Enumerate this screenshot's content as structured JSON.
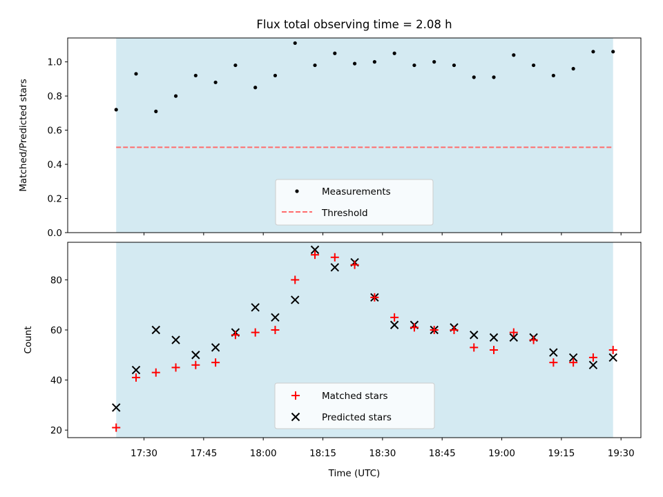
{
  "chart_data": [
    {
      "type": "scatter",
      "title": "Flux total observing time = 2.08 h",
      "xlabel": "",
      "ylabel": "Matched/Predicted stars",
      "ylim": [
        0,
        1.14
      ],
      "yticks": [
        0.0,
        0.2,
        0.4,
        0.6,
        0.8,
        1.0
      ],
      "yticklabels": [
        "0.0",
        "0.2",
        "0.4",
        "0.6",
        "0.8",
        "1.0"
      ],
      "shaded_region": {
        "from": "17:23",
        "to": "19:28",
        "color": "#add8e6"
      },
      "series": [
        {
          "name": "Measurements",
          "marker": "dot",
          "color": "#000000",
          "points": [
            [
              "17:23",
              0.72
            ],
            [
              "17:28",
              0.93
            ],
            [
              "17:33",
              0.71
            ],
            [
              "17:38",
              0.8
            ],
            [
              "17:43",
              0.92
            ],
            [
              "17:48",
              0.88
            ],
            [
              "17:53",
              0.98
            ],
            [
              "17:58",
              0.85
            ],
            [
              "18:03",
              0.92
            ],
            [
              "18:08",
              1.11
            ],
            [
              "18:13",
              0.98
            ],
            [
              "18:18",
              1.05
            ],
            [
              "18:23",
              0.99
            ],
            [
              "18:28",
              1.0
            ],
            [
              "18:33",
              1.05
            ],
            [
              "18:38",
              0.98
            ],
            [
              "18:43",
              1.0
            ],
            [
              "18:48",
              0.98
            ],
            [
              "18:53",
              0.91
            ],
            [
              "18:58",
              0.91
            ],
            [
              "19:03",
              1.04
            ],
            [
              "19:08",
              0.98
            ],
            [
              "19:13",
              0.92
            ],
            [
              "19:18",
              0.96
            ],
            [
              "19:23",
              1.06
            ],
            [
              "19:28",
              1.06
            ]
          ]
        },
        {
          "name": "Threshold",
          "marker": "dashed-line",
          "color": "#ff6b6b",
          "value": 0.5
        }
      ],
      "legend": "bottom-center"
    },
    {
      "type": "scatter",
      "title": "",
      "xlabel": "Time (UTC)",
      "ylabel": "Count",
      "ylim": [
        17,
        95
      ],
      "yticks": [
        20,
        40,
        60,
        80
      ],
      "yticklabels": [
        "20",
        "40",
        "60",
        "80"
      ],
      "xticklabels": [
        "17:30",
        "17:45",
        "18:00",
        "18:15",
        "18:30",
        "18:45",
        "19:00",
        "19:15",
        "19:30"
      ],
      "shaded_region": {
        "from": "17:23",
        "to": "19:28",
        "color": "#add8e6"
      },
      "series": [
        {
          "name": "Matched stars",
          "marker": "plus",
          "color": "#ff0000",
          "points": [
            [
              "17:23",
              21
            ],
            [
              "17:28",
              41
            ],
            [
              "17:33",
              43
            ],
            [
              "17:38",
              45
            ],
            [
              "17:43",
              46
            ],
            [
              "17:48",
              47
            ],
            [
              "17:53",
              58
            ],
            [
              "17:58",
              59
            ],
            [
              "18:03",
              60
            ],
            [
              "18:08",
              80
            ],
            [
              "18:13",
              90
            ],
            [
              "18:18",
              89
            ],
            [
              "18:23",
              86
            ],
            [
              "18:28",
              73
            ],
            [
              "18:33",
              65
            ],
            [
              "18:38",
              61
            ],
            [
              "18:43",
              60
            ],
            [
              "18:48",
              60
            ],
            [
              "18:53",
              53
            ],
            [
              "18:58",
              52
            ],
            [
              "19:03",
              59
            ],
            [
              "19:08",
              56
            ],
            [
              "19:13",
              47
            ],
            [
              "19:18",
              47
            ],
            [
              "19:23",
              49
            ],
            [
              "19:28",
              52
            ]
          ]
        },
        {
          "name": "Predicted stars",
          "marker": "x",
          "color": "#000000",
          "points": [
            [
              "17:23",
              29
            ],
            [
              "17:28",
              44
            ],
            [
              "17:33",
              60
            ],
            [
              "17:38",
              56
            ],
            [
              "17:43",
              50
            ],
            [
              "17:48",
              53
            ],
            [
              "17:53",
              59
            ],
            [
              "17:58",
              69
            ],
            [
              "18:03",
              65
            ],
            [
              "18:08",
              72
            ],
            [
              "18:13",
              92
            ],
            [
              "18:18",
              85
            ],
            [
              "18:23",
              87
            ],
            [
              "18:28",
              73
            ],
            [
              "18:33",
              62
            ],
            [
              "18:38",
              62
            ],
            [
              "18:43",
              60
            ],
            [
              "18:48",
              61
            ],
            [
              "18:53",
              58
            ],
            [
              "18:58",
              57
            ],
            [
              "19:03",
              57
            ],
            [
              "19:08",
              57
            ],
            [
              "19:13",
              51
            ],
            [
              "19:18",
              49
            ],
            [
              "19:23",
              46
            ],
            [
              "19:28",
              49
            ]
          ]
        }
      ],
      "legend": "bottom-center"
    }
  ]
}
